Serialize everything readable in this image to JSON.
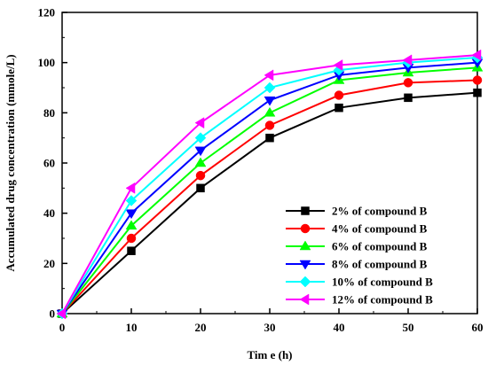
{
  "chart_data": {
    "type": "line",
    "xlabel": "Tim e (h)",
    "ylabel": "Accumulated drug concentration (mmole/L)",
    "xlim": [
      0,
      60
    ],
    "ylim": [
      0,
      120
    ],
    "x_ticks": [
      0,
      10,
      20,
      30,
      40,
      50,
      60
    ],
    "y_ticks": [
      0,
      20,
      40,
      60,
      80,
      100,
      120
    ],
    "x_tick_labels": [
      "0",
      "10",
      "20",
      "30",
      "40",
      "50",
      "60"
    ],
    "y_tick_labels": [
      "0",
      "20",
      "40",
      "60",
      "80",
      "100",
      "120"
    ],
    "grid": false,
    "legend_position": "bottom-right",
    "x": [
      0,
      10,
      20,
      30,
      40,
      50,
      60
    ],
    "series": [
      {
        "name": "2%  of compound B",
        "color": "#000000",
        "marker": "square",
        "values": [
          0,
          25,
          50,
          70,
          82,
          86,
          88
        ]
      },
      {
        "name": "4%  of compound B",
        "color": "#ff0000",
        "marker": "circle",
        "values": [
          0,
          30,
          55,
          75,
          87,
          92,
          93
        ]
      },
      {
        "name": "6%  of compound B",
        "color": "#00ff00",
        "marker": "triangle-up",
        "values": [
          0,
          35,
          60,
          80,
          93,
          96,
          98
        ]
      },
      {
        "name": "8%  of compound B",
        "color": "#0000ff",
        "marker": "triangle-down",
        "values": [
          0,
          40,
          65,
          85,
          95,
          98,
          100
        ]
      },
      {
        "name": "10%  of compound B",
        "color": "#00ffff",
        "marker": "diamond",
        "values": [
          0,
          45,
          70,
          90,
          97,
          100,
          102
        ]
      },
      {
        "name": "12%  of compound B",
        "color": "#ff00ff",
        "marker": "triangle-left",
        "values": [
          0,
          50,
          76,
          95,
          99,
          101,
          103
        ]
      }
    ]
  }
}
